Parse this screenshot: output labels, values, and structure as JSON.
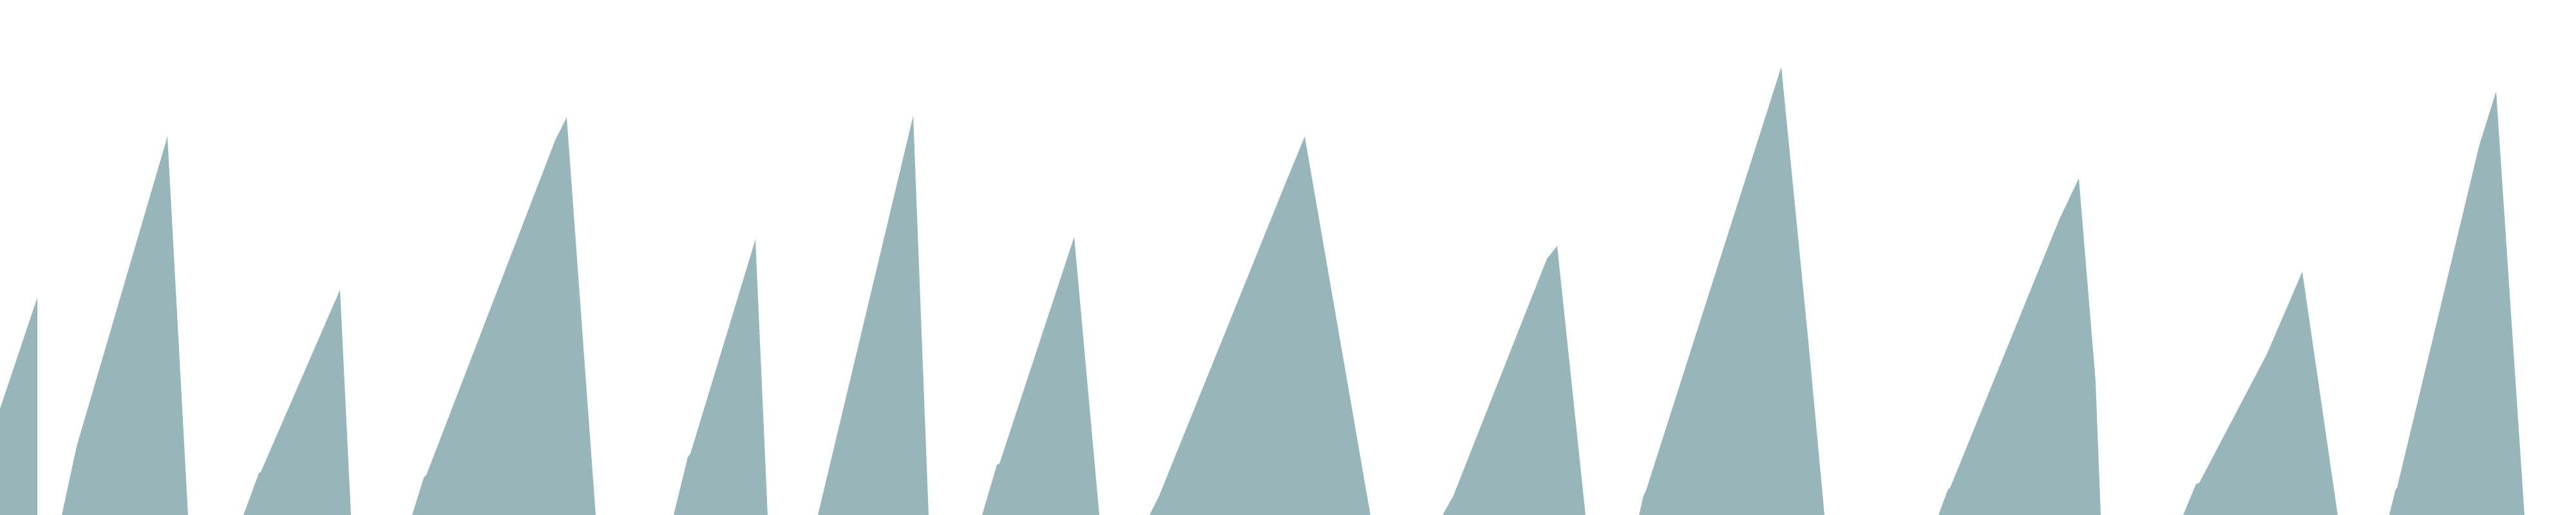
{
  "colors": {
    "background": "#ffffff",
    "spike_fill": "#98b6ba"
  },
  "spikes": [
    {
      "id": 1
    },
    {
      "id": 2
    },
    {
      "id": 3
    },
    {
      "id": 4
    },
    {
      "id": 5
    },
    {
      "id": 6
    },
    {
      "id": 7
    },
    {
      "id": 8
    },
    {
      "id": 9
    },
    {
      "id": 10
    },
    {
      "id": 11
    },
    {
      "id": 12
    },
    {
      "id": 13
    },
    {
      "id": 14
    }
  ]
}
